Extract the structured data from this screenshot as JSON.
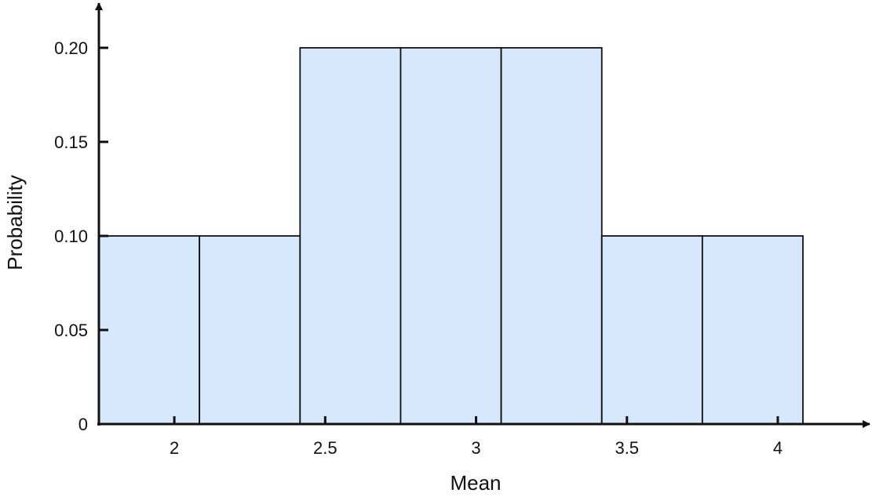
{
  "chart_data": {
    "type": "bar",
    "title": "",
    "xlabel": "Mean",
    "ylabel": "Probability",
    "bins": [
      {
        "start": 1.75,
        "end": 2.0833,
        "value": 0.1
      },
      {
        "start": 2.0833,
        "end": 2.4167,
        "value": 0.1
      },
      {
        "start": 2.4167,
        "end": 2.75,
        "value": 0.2
      },
      {
        "start": 2.75,
        "end": 3.0833,
        "value": 0.2
      },
      {
        "start": 3.0833,
        "end": 3.4167,
        "value": 0.2
      },
      {
        "start": 3.4167,
        "end": 3.75,
        "value": 0.1
      },
      {
        "start": 3.75,
        "end": 4.0833,
        "value": 0.1
      }
    ],
    "xticks": [
      {
        "value": 2,
        "label": "2"
      },
      {
        "value": 2.5,
        "label": "2.5"
      },
      {
        "value": 3,
        "label": "3"
      },
      {
        "value": 3.5,
        "label": "3.5"
      },
      {
        "value": 4,
        "label": "4"
      }
    ],
    "yticks": [
      {
        "value": 0,
        "label": "0"
      },
      {
        "value": 0.05,
        "label": "0.05"
      },
      {
        "value": 0.1,
        "label": "0.10"
      },
      {
        "value": 0.15,
        "label": "0.15"
      },
      {
        "value": 0.2,
        "label": "0.20"
      }
    ],
    "xlim": [
      1.75,
      4.0833
    ],
    "ylim": [
      0,
      0.2
    ],
    "grid": false,
    "legend": "none",
    "colors": {
      "bar_fill": "#d7e8fc",
      "bar_stroke": "#111111",
      "axis": "#111111"
    }
  }
}
